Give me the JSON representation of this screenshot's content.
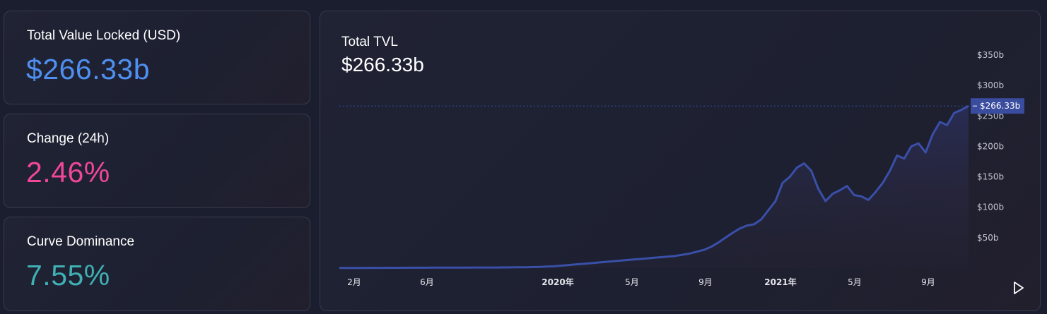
{
  "stats": {
    "tvl": {
      "label": "Total Value Locked (USD)",
      "value": "$266.33b"
    },
    "change": {
      "label": "Change (24h)",
      "value": "2.46%"
    },
    "dominance": {
      "label": "Curve Dominance",
      "value": "7.55%"
    }
  },
  "chart_header": {
    "title": "Total TVL",
    "value": "$266.33b"
  },
  "colors": {
    "accent_blue": "#4f8ff0",
    "accent_pink": "#f0479a",
    "accent_teal": "#3fb0b3",
    "line": "#3a4fa8"
  },
  "chart_data": {
    "type": "area",
    "title": "Total TVL",
    "xlabel": "",
    "ylabel": "",
    "x_ticks": [
      "2月",
      "6月",
      "2020年",
      "5月",
      "9月",
      "2021年",
      "5月",
      "9月"
    ],
    "x_ticks_bold": [
      false,
      false,
      true,
      false,
      false,
      true,
      false,
      false
    ],
    "y_ticks": [
      "$50b",
      "$100b",
      "$150b",
      "$200b",
      "$250b",
      "$300b",
      "$350b"
    ],
    "ylim": [
      0,
      350
    ],
    "current_value_label": "$266.33b",
    "current_value": 266.33,
    "grid": false,
    "series": [
      {
        "values": [
          0.3,
          0.3,
          0.4,
          0.4,
          0.5,
          0.5,
          0.5,
          0.6,
          0.6,
          0.6,
          0.7,
          0.7,
          0.7,
          0.8,
          0.8,
          0.8,
          0.9,
          0.9,
          0.9,
          1.0,
          1.0,
          1.1,
          1.1,
          1.2,
          1.3,
          1.4,
          1.5,
          1.7,
          2,
          2.5,
          3,
          4,
          5,
          6,
          7,
          8,
          9,
          10,
          11,
          12,
          13,
          14,
          15,
          16,
          17,
          18,
          19,
          20,
          22,
          24,
          27,
          30,
          35,
          42,
          50,
          58,
          65,
          70,
          72,
          80,
          95,
          110,
          140,
          150,
          165,
          172,
          160,
          130,
          110,
          122,
          128,
          135,
          120,
          118,
          112,
          125,
          140,
          160,
          185,
          180,
          200,
          205,
          190,
          220,
          240,
          235,
          255,
          260,
          266.33
        ]
      }
    ]
  }
}
